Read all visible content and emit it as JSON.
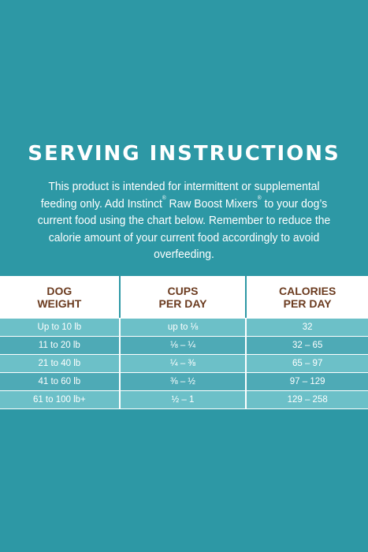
{
  "title": "SERVING INSTRUCTIONS",
  "description": {
    "part1": "This product is intended for intermittent or supplemental feeding only. Add Instinct",
    "reg1": "®",
    "part2": " Raw Boost Mixers",
    "reg2": "®",
    "part3": " to your dog’s current food using the chart below. Remember to reduce the calorie amount of your current food accordingly to avoid overfeeding."
  },
  "table": {
    "headers": [
      "DOG\nWEIGHT",
      "CUPS\nPER DAY",
      "CALORIES\nPER DAY"
    ],
    "rows": [
      [
        "Up to 10 lb",
        "up to ⅛",
        "32"
      ],
      [
        "11 to 20 lb",
        "⅛ – ¼",
        "32 – 65"
      ],
      [
        "21 to 40 lb",
        "¼ – ⅜",
        "65 – 97"
      ],
      [
        "41 to 60 lb",
        "⅜ – ½",
        "97 – 129"
      ],
      [
        "61 to 100 lb+",
        "½ – 1",
        "129 – 258"
      ]
    ]
  },
  "colors": {
    "background": "#2d98a5",
    "header_text": "#6b3b1f",
    "row_light": "#6cc0c8",
    "row_dark": "#4eaab6"
  }
}
